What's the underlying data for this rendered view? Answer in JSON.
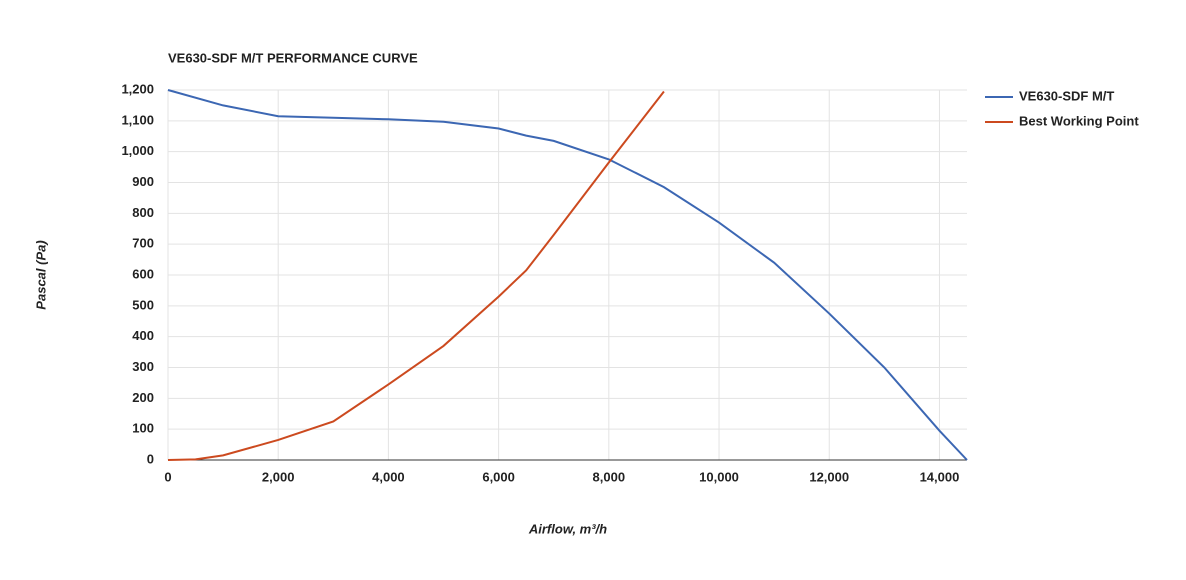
{
  "chart_data": {
    "type": "line",
    "title": "VE630-SDF M/T PERFORMANCE CURVE",
    "x_label": "Airflow, m³/h",
    "y_label": "Pascal (Pa)",
    "xlim": [
      0,
      14500
    ],
    "xticks": [
      0,
      {
        "value": 2000,
        "label": "2,000"
      },
      {
        "value": 4000,
        "label": "4,000"
      },
      {
        "value": 6000,
        "label": "6,000"
      },
      {
        "value": 8000,
        "label": "8,000"
      },
      {
        "value": 10000,
        "label": "10,000"
      },
      {
        "value": 12000,
        "label": "12,000"
      },
      {
        "value": 14000,
        "label": "14,000"
      }
    ],
    "ylim": [
      0,
      1200
    ],
    "yticks": [
      0,
      100,
      200,
      300,
      400,
      500,
      600,
      700,
      800,
      900,
      {
        "value": 1000,
        "label": "1,000"
      },
      {
        "value": 1100,
        "label": "1,100"
      },
      {
        "value": 1200,
        "label": "1,200"
      }
    ],
    "grid": true,
    "legend": "right",
    "series": [
      {
        "name": "VE630-SDF M/T",
        "color": "#3c67b3",
        "x": [
          0,
          1000,
          2000,
          3000,
          4000,
          5000,
          6000,
          6500,
          7000,
          8000,
          9000,
          10000,
          11000,
          12000,
          13000,
          14000,
          14500
        ],
        "values": [
          1200,
          1150,
          1115,
          1110,
          1105,
          1097,
          1075,
          1052,
          1035,
          975,
          885,
          770,
          640,
          475,
          300,
          95,
          0
        ]
      },
      {
        "name": "Best Working Point",
        "color": "#cc4a1f",
        "x": [
          0,
          500,
          1000,
          2000,
          3000,
          4000,
          5000,
          6000,
          6500,
          7000,
          8000,
          9000
        ],
        "values": [
          0,
          2,
          15,
          65,
          125,
          245,
          370,
          530,
          615,
          730,
          965,
          1195
        ]
      }
    ]
  }
}
